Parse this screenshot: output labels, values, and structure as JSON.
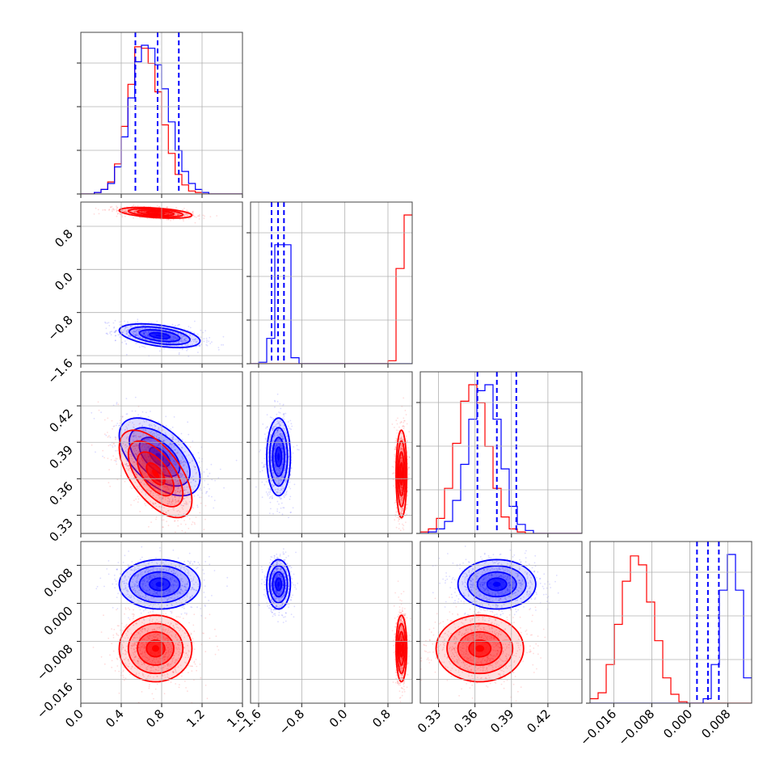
{
  "chart_data": {
    "type": "corner",
    "grid": true,
    "colors": {
      "series_a": "#0000ff",
      "series_b": "#ff0000"
    },
    "params": [
      {
        "lim": [
          0.0,
          1.6
        ],
        "ticks": [
          0.0,
          0.4,
          0.8,
          1.2,
          1.6
        ],
        "tick_labels": [
          "0.0",
          "0.4",
          "0.8",
          "1.2",
          "1.6"
        ]
      },
      {
        "lim": [
          -1.75,
          1.25
        ],
        "ticks": [
          -1.6,
          -0.8,
          0.0,
          0.8
        ],
        "tick_labels": [
          "−1.6",
          "−0.8",
          "0.0",
          "0.8"
        ]
      },
      {
        "lim": [
          0.315,
          0.448
        ],
        "ticks": [
          0.33,
          0.36,
          0.39,
          0.42
        ],
        "tick_labels": [
          "0.33",
          "0.36",
          "0.39",
          "0.42"
        ]
      },
      {
        "lim": [
          -0.021,
          0.013
        ],
        "ticks": [
          -0.016,
          -0.008,
          0.0,
          0.008
        ],
        "tick_labels": [
          "−0.016",
          "−0.008",
          "0.000",
          "0.008"
        ]
      }
    ],
    "series": [
      {
        "color": "#0000ff",
        "mean": [
          0.78,
          -1.23,
          0.378,
          0.004
        ],
        "sd": [
          0.2,
          0.11,
          0.016,
          0.0026
        ],
        "corr": {
          "0-1": -0.45,
          "0-2": -0.55,
          "0-3": 0.0,
          "1-2": 0.0,
          "1-3": 0.0,
          "2-3": 0.0
        }
      },
      {
        "color": "#ff0000",
        "mean": [
          0.74,
          1.05,
          0.364,
          -0.0095
        ],
        "sd": [
          0.18,
          0.05,
          0.018,
          0.0035
        ],
        "corr": {
          "0-1": -0.45,
          "0-2": -0.6,
          "0-3": 0.0,
          "1-2": 0.0,
          "1-3": 0.0,
          "2-3": 0.0
        }
      }
    ],
    "histograms": [
      {
        "bins": [
          0.0,
          1.6,
          24
        ],
        "quantile_lines": [
          0.54,
          0.76,
          0.97
        ],
        "a": [
          0,
          0,
          1,
          3,
          7,
          18,
          38,
          64,
          88,
          99,
          97,
          86,
          70,
          48,
          29,
          15,
          7,
          3,
          1,
          0,
          0,
          0,
          0,
          0
        ],
        "b": [
          0,
          0,
          1,
          3,
          8,
          20,
          45,
          73,
          98,
          97,
          87,
          68,
          46,
          27,
          13,
          6,
          2,
          1,
          0,
          0,
          0,
          0,
          0,
          0
        ]
      },
      {
        "bins": [
          -1.75,
          1.25,
          20
        ],
        "quantile_lines": [
          -1.36,
          -1.24,
          -1.13
        ],
        "a": [
          0,
          1,
          17,
          80,
          80,
          4,
          0,
          0,
          0,
          0,
          0,
          0,
          0,
          0,
          0,
          0,
          0,
          0,
          0,
          0
        ],
        "b": [
          0,
          0,
          0,
          0,
          0,
          0,
          0,
          0,
          0,
          0,
          0,
          0,
          0,
          0,
          0,
          0,
          0,
          2,
          64,
          100
        ]
      },
      {
        "bins": [
          0.315,
          0.448,
          20
        ],
        "quantile_lines": [
          0.362,
          0.378,
          0.394
        ],
        "a": [
          0,
          1,
          3,
          8,
          22,
          46,
          76,
          95,
          99,
          76,
          43,
          18,
          6,
          2,
          0,
          0,
          0,
          0,
          0,
          0
        ],
        "b": [
          1,
          3,
          10,
          30,
          60,
          88,
          99,
          87,
          58,
          30,
          11,
          3,
          1,
          0,
          0,
          0,
          0,
          0,
          0,
          0
        ]
      },
      {
        "bins": [
          -0.021,
          0.013,
          20
        ],
        "quantile_lines": [
          0.0015,
          0.0038,
          0.0061
        ],
        "a": [
          0,
          0,
          0,
          0,
          0,
          0,
          0,
          0,
          0,
          0,
          0,
          0,
          0,
          0,
          3,
          26,
          76,
          100,
          76,
          17
        ],
        "b": [
          3,
          7,
          26,
          53,
          82,
          99,
          93,
          68,
          42,
          17,
          6,
          1,
          0,
          0,
          0,
          0,
          0,
          0,
          0,
          0
        ]
      }
    ]
  }
}
